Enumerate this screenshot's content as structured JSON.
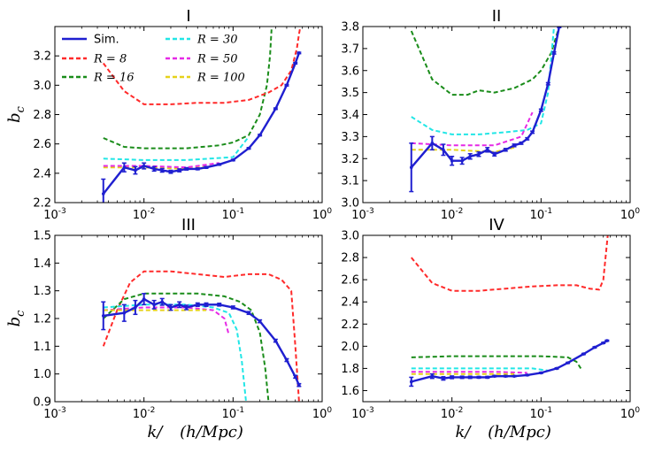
{
  "chart_data": [
    {
      "type": "line",
      "title": "I",
      "xscale": "log",
      "xlim": [
        0.001,
        1
      ],
      "ylim": [
        2.2,
        3.4
      ],
      "xticks": [
        "10^-3",
        "10^-2",
        "10^-1",
        "10^0"
      ],
      "yticks": [
        "2.2",
        "2.4",
        "2.6",
        "2.8",
        "3.0",
        "3.2"
      ],
      "ylabel": "b_c",
      "xlabel": "",
      "legend": {
        "placement": "top-left",
        "entries": [
          {
            "label": "Sim.",
            "color": "#1f1fd0",
            "dash": "solid"
          },
          {
            "label": "R = 8",
            "color": "#ff2a2a",
            "dash": "dashed"
          },
          {
            "label": "R = 16",
            "color": "#1a8c1a",
            "dash": "dashed"
          },
          {
            "label": "R = 30",
            "color": "#22e6e6",
            "dash": "dashed"
          },
          {
            "label": "R = 50",
            "color": "#e62ae6",
            "dash": "dashed"
          },
          {
            "label": "R = 100",
            "color": "#e6d21a",
            "dash": "dashed"
          }
        ]
      },
      "series": [
        {
          "key": "R100",
          "color": "#e6d21a",
          "x": [
            0.0035,
            0.01,
            0.03,
            0.06
          ],
          "y": [
            2.44,
            2.44,
            2.43,
            2.45
          ]
        },
        {
          "key": "R50",
          "color": "#e62ae6",
          "x": [
            0.0035,
            0.01,
            0.03,
            0.07
          ],
          "y": [
            2.45,
            2.45,
            2.44,
            2.47
          ]
        },
        {
          "key": "R30",
          "color": "#22e6e6",
          "x": [
            0.0035,
            0.01,
            0.03,
            0.1,
            0.15
          ],
          "y": [
            2.5,
            2.49,
            2.49,
            2.51,
            2.65
          ]
        },
        {
          "key": "R16",
          "color": "#1a8c1a",
          "x": [
            0.0035,
            0.006,
            0.01,
            0.03,
            0.07,
            0.1,
            0.15,
            0.2,
            0.24,
            0.26,
            0.27
          ],
          "y": [
            2.64,
            2.58,
            2.57,
            2.57,
            2.59,
            2.61,
            2.66,
            2.8,
            3.0,
            3.2,
            3.38
          ]
        },
        {
          "key": "R8",
          "color": "#ff2a2a",
          "x": [
            0.0035,
            0.006,
            0.01,
            0.02,
            0.04,
            0.08,
            0.15,
            0.25,
            0.35,
            0.45,
            0.52,
            0.55,
            0.57
          ],
          "y": [
            3.15,
            2.96,
            2.87,
            2.87,
            2.88,
            2.88,
            2.9,
            2.95,
            3.0,
            3.1,
            3.25,
            3.35,
            3.4
          ]
        },
        {
          "key": "Sim",
          "color": "#1f1fd0",
          "sim": true,
          "x": [
            0.0035,
            0.006,
            0.008,
            0.01,
            0.013,
            0.016,
            0.02,
            0.025,
            0.03,
            0.04,
            0.05,
            0.07,
            0.1,
            0.15,
            0.2,
            0.3,
            0.4,
            0.5,
            0.55
          ],
          "y": [
            2.26,
            2.44,
            2.42,
            2.45,
            2.43,
            2.42,
            2.41,
            2.42,
            2.43,
            2.43,
            2.44,
            2.46,
            2.49,
            2.57,
            2.66,
            2.84,
            3.0,
            3.15,
            3.22
          ],
          "err": [
            0.1,
            0.03,
            0.025,
            0.02,
            0.015,
            0.012,
            0.01,
            0.01,
            0.008,
            0.006,
            0.006,
            0.005,
            0.005,
            0.005,
            0.005,
            0.005,
            0.005,
            0.005,
            0.005
          ]
        }
      ]
    },
    {
      "type": "line",
      "title": "II",
      "xscale": "log",
      "xlim": [
        0.001,
        1
      ],
      "ylim": [
        3.0,
        3.8
      ],
      "xticks": [
        "10^-3",
        "10^-2",
        "10^-1",
        "10^0"
      ],
      "yticks": [
        "3.0",
        "3.1",
        "3.2",
        "3.3",
        "3.4",
        "3.5",
        "3.6",
        "3.7",
        "3.8"
      ],
      "ylabel": "",
      "xlabel": "",
      "series": [
        {
          "key": "R16",
          "color": "#1a8c1a",
          "x": [
            0.0035,
            0.006,
            0.01,
            0.015,
            0.02,
            0.03,
            0.05,
            0.08,
            0.1,
            0.13,
            0.16
          ],
          "y": [
            3.78,
            3.56,
            3.49,
            3.49,
            3.51,
            3.5,
            3.52,
            3.56,
            3.6,
            3.68,
            3.8
          ]
        },
        {
          "key": "R30",
          "color": "#22e6e6",
          "x": [
            0.0035,
            0.006,
            0.01,
            0.02,
            0.04,
            0.07,
            0.1,
            0.12,
            0.14
          ],
          "y": [
            3.39,
            3.33,
            3.31,
            3.31,
            3.32,
            3.33,
            3.36,
            3.5,
            3.8
          ]
        },
        {
          "key": "R50",
          "color": "#e62ae6",
          "x": [
            0.0035,
            0.01,
            0.03,
            0.06,
            0.08
          ],
          "y": [
            3.27,
            3.26,
            3.26,
            3.3,
            3.41
          ]
        },
        {
          "key": "R100",
          "color": "#e6d21a",
          "x": [
            0.0035,
            0.01,
            0.03,
            0.05
          ],
          "y": [
            3.24,
            3.24,
            3.23,
            3.25
          ]
        },
        {
          "key": "Sim",
          "color": "#1f1fd0",
          "sim": true,
          "x": [
            0.0035,
            0.006,
            0.008,
            0.01,
            0.013,
            0.016,
            0.02,
            0.025,
            0.03,
            0.04,
            0.05,
            0.06,
            0.07,
            0.08,
            0.1,
            0.12,
            0.14,
            0.16
          ],
          "y": [
            3.16,
            3.27,
            3.24,
            3.19,
            3.19,
            3.21,
            3.22,
            3.24,
            3.22,
            3.24,
            3.26,
            3.27,
            3.29,
            3.32,
            3.42,
            3.54,
            3.68,
            3.8
          ],
          "err": [
            0.11,
            0.03,
            0.025,
            0.02,
            0.015,
            0.012,
            0.01,
            0.01,
            0.008,
            0.006,
            0.006,
            0.005,
            0.005,
            0.005,
            0.005,
            0.005,
            0.005,
            0.005
          ]
        }
      ]
    },
    {
      "type": "line",
      "title": "III",
      "xscale": "log",
      "xlim": [
        0.001,
        1
      ],
      "ylim": [
        0.9,
        1.5
      ],
      "xticks": [
        "10^-3",
        "10^-2",
        "10^-1",
        "10^0"
      ],
      "yticks": [
        "0.9",
        "1.0",
        "1.1",
        "1.2",
        "1.3",
        "1.4",
        "1.5"
      ],
      "ylabel": "b_c",
      "xlabel": "k/ (h/Mpc)",
      "series": [
        {
          "key": "R8",
          "color": "#ff2a2a",
          "x": [
            0.0035,
            0.005,
            0.007,
            0.01,
            0.02,
            0.04,
            0.08,
            0.15,
            0.25,
            0.35,
            0.45,
            0.5,
            0.55
          ],
          "y": [
            1.1,
            1.23,
            1.33,
            1.37,
            1.37,
            1.36,
            1.35,
            1.36,
            1.36,
            1.34,
            1.3,
            1.1,
            0.9
          ]
        },
        {
          "key": "R16",
          "color": "#1a8c1a",
          "x": [
            0.0035,
            0.006,
            0.01,
            0.02,
            0.04,
            0.08,
            0.12,
            0.16,
            0.2,
            0.23,
            0.25
          ],
          "y": [
            1.2,
            1.27,
            1.29,
            1.29,
            1.29,
            1.28,
            1.26,
            1.23,
            1.15,
            1.02,
            0.9
          ]
        },
        {
          "key": "R30",
          "color": "#22e6e6",
          "x": [
            0.0035,
            0.01,
            0.03,
            0.06,
            0.09,
            0.11,
            0.125,
            0.14
          ],
          "y": [
            1.24,
            1.25,
            1.25,
            1.24,
            1.22,
            1.16,
            1.05,
            0.9
          ]
        },
        {
          "key": "R50",
          "color": "#e62ae6",
          "x": [
            0.0035,
            0.01,
            0.03,
            0.06,
            0.08,
            0.09
          ],
          "y": [
            1.23,
            1.24,
            1.24,
            1.23,
            1.2,
            1.14
          ]
        },
        {
          "key": "R100",
          "color": "#e6d21a",
          "x": [
            0.0035,
            0.01,
            0.03,
            0.05
          ],
          "y": [
            1.23,
            1.23,
            1.23,
            1.23
          ]
        },
        {
          "key": "Sim",
          "color": "#1f1fd0",
          "sim": true,
          "x": [
            0.0035,
            0.006,
            0.008,
            0.01,
            0.013,
            0.016,
            0.02,
            0.025,
            0.03,
            0.04,
            0.05,
            0.07,
            0.1,
            0.15,
            0.2,
            0.3,
            0.4,
            0.5,
            0.55
          ],
          "y": [
            1.21,
            1.22,
            1.24,
            1.27,
            1.25,
            1.26,
            1.24,
            1.25,
            1.24,
            1.25,
            1.25,
            1.25,
            1.24,
            1.22,
            1.19,
            1.12,
            1.05,
            0.99,
            0.96
          ],
          "err": [
            0.05,
            0.03,
            0.025,
            0.02,
            0.015,
            0.012,
            0.01,
            0.01,
            0.008,
            0.006,
            0.006,
            0.005,
            0.005,
            0.005,
            0.005,
            0.005,
            0.005,
            0.005,
            0.005
          ]
        }
      ]
    },
    {
      "type": "line",
      "title": "IV",
      "xscale": "log",
      "xlim": [
        0.001,
        1
      ],
      "ylim": [
        1.5,
        3.0
      ],
      "xticks": [
        "10^-3",
        "10^-2",
        "10^-1",
        "10^0"
      ],
      "yticks": [
        "1.6",
        "1.8",
        "2.0",
        "2.2",
        "2.4",
        "2.6",
        "2.8",
        "3.0"
      ],
      "ylabel": "",
      "xlabel": "k/ (h/Mpc)",
      "series": [
        {
          "key": "R8",
          "color": "#ff2a2a",
          "x": [
            0.0035,
            0.006,
            0.01,
            0.02,
            0.04,
            0.08,
            0.15,
            0.25,
            0.35,
            0.45,
            0.5,
            0.53,
            0.56
          ],
          "y": [
            2.8,
            2.57,
            2.5,
            2.5,
            2.52,
            2.54,
            2.55,
            2.55,
            2.52,
            2.51,
            2.6,
            2.8,
            3.0
          ]
        },
        {
          "key": "R16",
          "color": "#1a8c1a",
          "x": [
            0.0035,
            0.01,
            0.03,
            0.1,
            0.2,
            0.25,
            0.28
          ],
          "y": [
            1.9,
            1.91,
            1.91,
            1.91,
            1.9,
            1.86,
            1.8
          ]
        },
        {
          "key": "R30",
          "color": "#22e6e6",
          "x": [
            0.0035,
            0.01,
            0.03,
            0.08,
            0.12
          ],
          "y": [
            1.8,
            1.8,
            1.8,
            1.8,
            1.78
          ]
        },
        {
          "key": "R50",
          "color": "#e62ae6",
          "x": [
            0.0035,
            0.01,
            0.03,
            0.07
          ],
          "y": [
            1.77,
            1.77,
            1.77,
            1.76
          ]
        },
        {
          "key": "R100",
          "color": "#e6d21a",
          "x": [
            0.0035,
            0.01,
            0.03,
            0.05
          ],
          "y": [
            1.75,
            1.75,
            1.75,
            1.75
          ]
        },
        {
          "key": "Sim",
          "color": "#1f1fd0",
          "sim": true,
          "x": [
            0.0035,
            0.006,
            0.008,
            0.01,
            0.013,
            0.016,
            0.02,
            0.025,
            0.03,
            0.04,
            0.05,
            0.07,
            0.1,
            0.15,
            0.2,
            0.3,
            0.4,
            0.5,
            0.55
          ],
          "y": [
            1.68,
            1.73,
            1.71,
            1.72,
            1.72,
            1.72,
            1.72,
            1.72,
            1.73,
            1.73,
            1.73,
            1.74,
            1.76,
            1.8,
            1.85,
            1.93,
            1.99,
            2.03,
            2.05
          ],
          "err": [
            0.04,
            0.02,
            0.015,
            0.012,
            0.01,
            0.01,
            0.008,
            0.008,
            0.006,
            0.006,
            0.005,
            0.005,
            0.005,
            0.005,
            0.005,
            0.005,
            0.005,
            0.005,
            0.005
          ]
        }
      ]
    }
  ]
}
